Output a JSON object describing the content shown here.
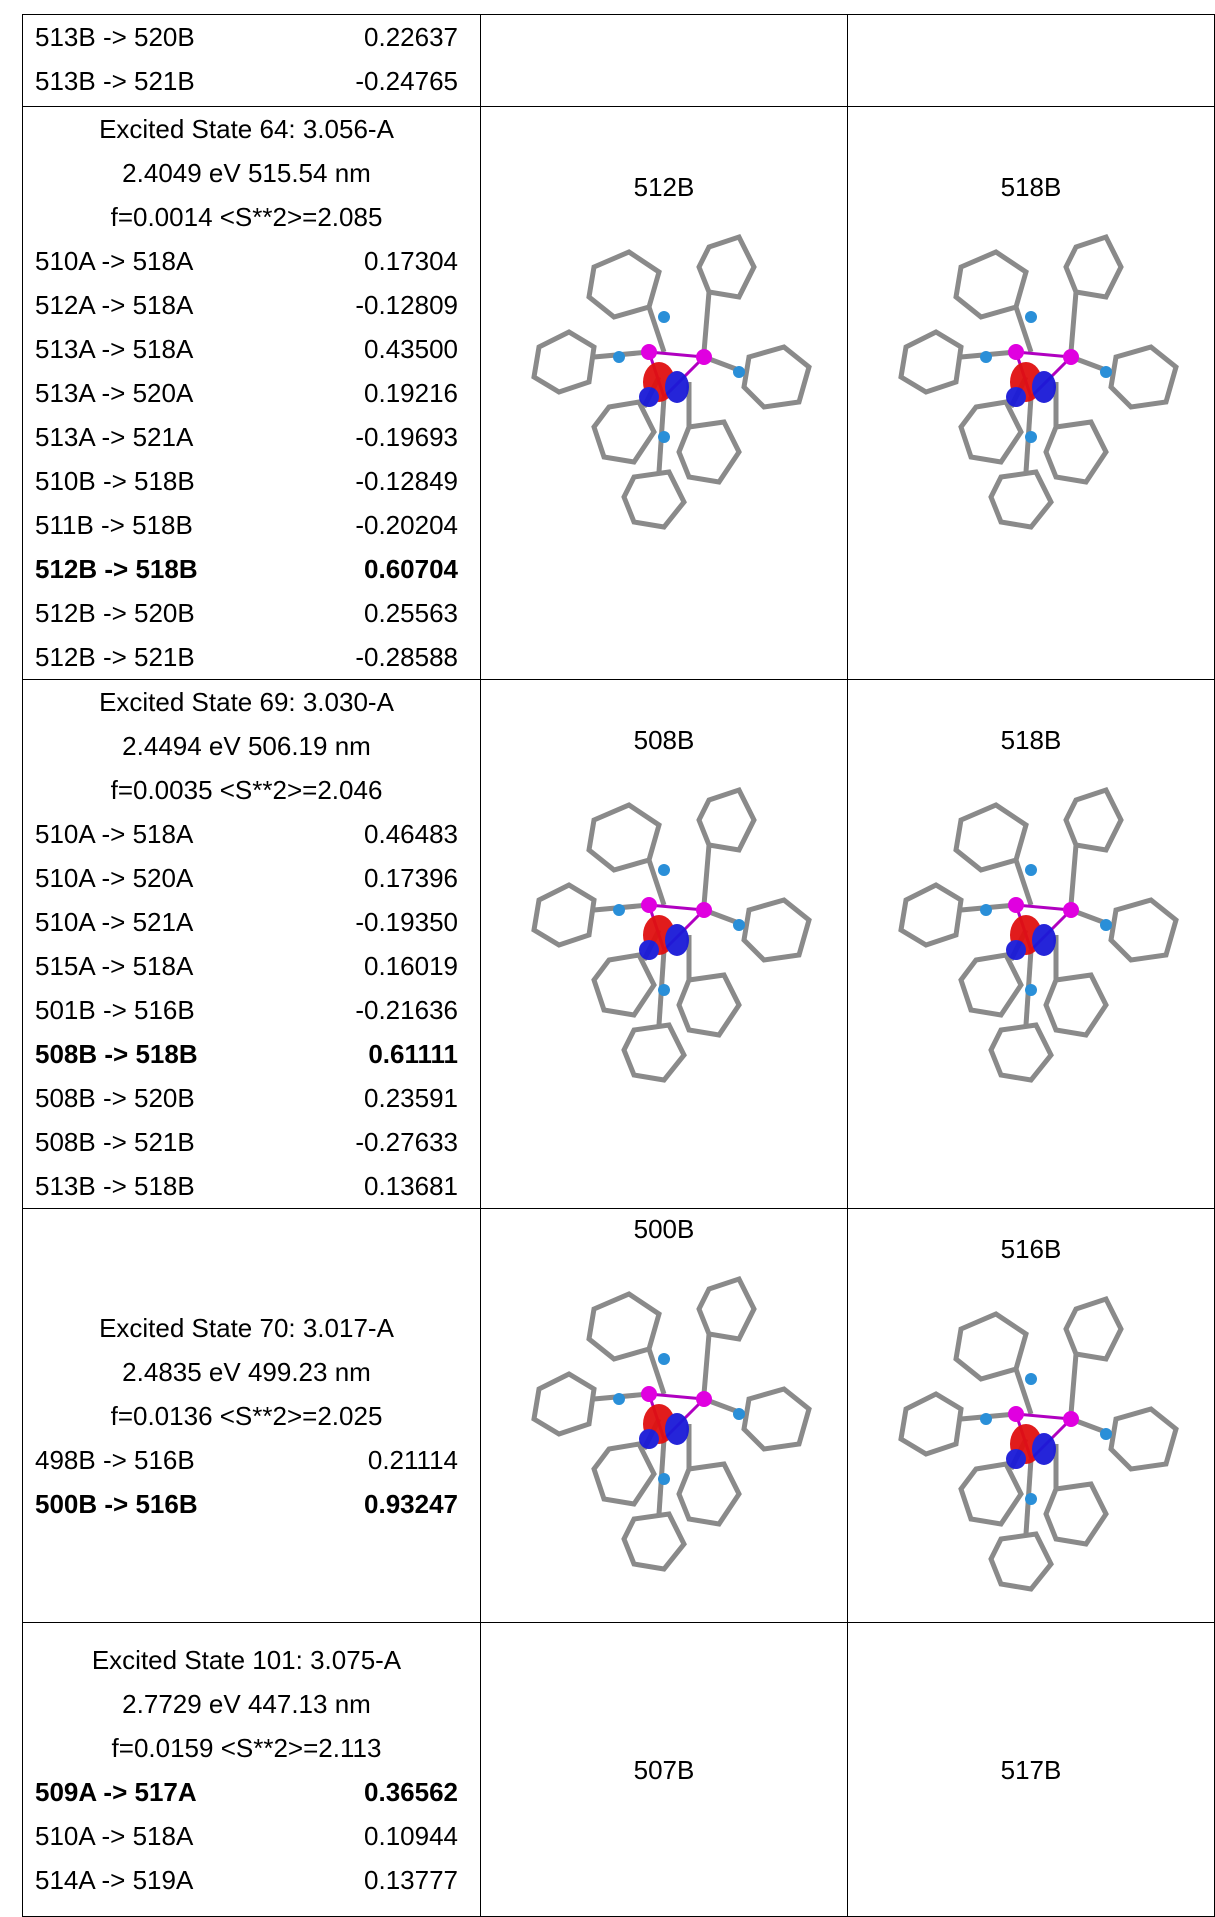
{
  "table": {
    "rows": [
      {
        "state": [],
        "transitions": [
          {
            "pair": "513B -> 520B",
            "coef": "0.22637",
            "bold": false
          },
          {
            "pair": "513B -> 521B",
            "coef": "-0.24765",
            "bold": false
          }
        ],
        "orbitals": []
      },
      {
        "state": [
          "Excited State   64:   3.056-A",
          "2.4049 eV   515.54 nm",
          "f=0.0014   <S**2>=2.085"
        ],
        "transitions": [
          {
            "pair": "510A -> 518A",
            "coef": "0.17304",
            "bold": false
          },
          {
            "pair": "512A -> 518A",
            "coef": "-0.12809",
            "bold": false
          },
          {
            "pair": "513A -> 518A",
            "coef": "0.43500",
            "bold": false
          },
          {
            "pair": "513A -> 520A",
            "coef": "0.19216",
            "bold": false
          },
          {
            "pair": "513A -> 521A",
            "coef": "-0.19693",
            "bold": false
          },
          {
            "pair": "510B -> 518B",
            "coef": "-0.12849",
            "bold": false
          },
          {
            "pair": "511B -> 518B",
            "coef": "-0.20204",
            "bold": false
          },
          {
            "pair": "512B -> 518B",
            "coef": "0.60704",
            "bold": true
          },
          {
            "pair": "512B -> 520B",
            "coef": "0.25563",
            "bold": false
          },
          {
            "pair": "512B -> 521B",
            "coef": "-0.28588",
            "bold": false
          }
        ],
        "orbitals": [
          "512B",
          "518B"
        ]
      },
      {
        "state": [
          "Excited State   69:   3.030-A",
          "2.4494 eV   506.19 nm",
          "f=0.0035   <S**2>=2.046"
        ],
        "transitions": [
          {
            "pair": "510A -> 518A",
            "coef": "0.46483",
            "bold": false
          },
          {
            "pair": "510A -> 520A",
            "coef": "0.17396",
            "bold": false
          },
          {
            "pair": "510A -> 521A",
            "coef": "-0.19350",
            "bold": false
          },
          {
            "pair": "515A -> 518A",
            "coef": "0.16019",
            "bold": false
          },
          {
            "pair": "501B -> 516B",
            "coef": "-0.21636",
            "bold": false
          },
          {
            "pair": "508B -> 518B",
            "coef": "0.61111",
            "bold": true
          },
          {
            "pair": "508B -> 520B",
            "coef": "0.23591",
            "bold": false
          },
          {
            "pair": "508B -> 521B",
            "coef": "-0.27633",
            "bold": false
          },
          {
            "pair": "513B -> 518B",
            "coef": "0.13681",
            "bold": false
          }
        ],
        "orbitals": [
          "508B",
          "518B"
        ]
      },
      {
        "state": [
          "Excited State   70:   3.017-A",
          "2.4835 eV   499.23 nm",
          "f=0.0136   <S**2>=2.025"
        ],
        "transitions": [
          {
            "pair": "498B -> 516B",
            "coef": "0.21114",
            "bold": false
          },
          {
            "pair": "500B -> 516B",
            "coef": "0.93247",
            "bold": true
          }
        ],
        "orbitals": [
          "500B",
          "516B"
        ]
      },
      {
        "state": [
          "Excited State 101:   3.075-A",
          "2.7729 eV   447.13 nm",
          "f=0.0159   <S**2>=2.113"
        ],
        "transitions": [
          {
            "pair": "509A -> 517A",
            "coef": "0.36562",
            "bold": true
          },
          {
            "pair": "510A -> 518A",
            "coef": "0.10944",
            "bold": false
          },
          {
            "pair": "514A -> 519A",
            "coef": "0.13777",
            "bold": false
          }
        ],
        "orbitals": [
          "507B",
          "517B"
        ]
      }
    ]
  }
}
